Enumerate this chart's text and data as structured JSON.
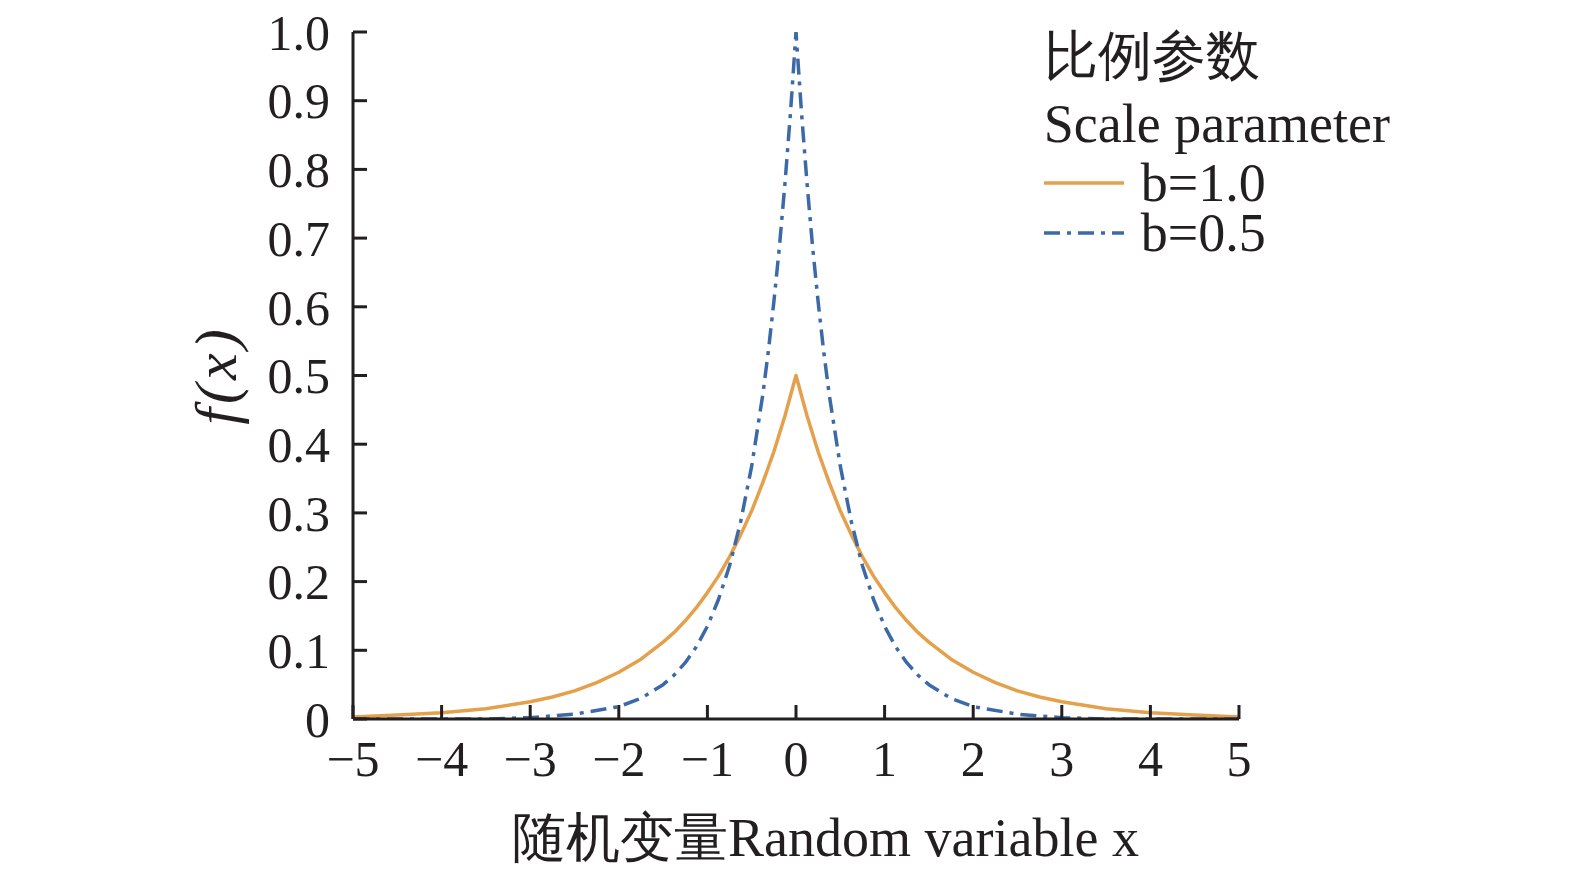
{
  "chart_data": {
    "type": "line",
    "xlabel": "随机变量Random variable x",
    "ylabel": "f(x)",
    "legend_title": "比例参数\nScale parameter",
    "xlim": [
      -5,
      5
    ],
    "xticks": [
      {
        "value": -5,
        "label": "−5"
      },
      {
        "value": -4,
        "label": "−4"
      },
      {
        "value": -3,
        "label": "−3"
      },
      {
        "value": -2,
        "label": "−2"
      },
      {
        "value": -1,
        "label": "−1"
      },
      0,
      1,
      2,
      3,
      4,
      5
    ],
    "ylim": [
      0,
      1
    ],
    "yticks": [
      0,
      0.1,
      0.2,
      0.3,
      0.4,
      0.5,
      0.6,
      0.7,
      0.8,
      0.9,
      {
        "value": 1,
        "label": "1.0"
      }
    ],
    "grid": false,
    "legend": "top right",
    "series": [
      {
        "name": "b=1.0",
        "color": "#e4a04b",
        "line_style": "solid",
        "x": [
          -5,
          -4.5,
          -4,
          -3.5,
          -3,
          -2.75,
          -2.5,
          -2.25,
          -2,
          -1.75,
          -1.5,
          -1.375,
          -1.25,
          -1.125,
          -1,
          -0.875,
          -0.75,
          -0.625,
          -0.5,
          -0.375,
          -0.25,
          -0.125,
          0,
          0.125,
          0.25,
          0.375,
          0.5,
          0.625,
          0.75,
          0.875,
          1,
          1.125,
          1.25,
          1.375,
          1.5,
          1.75,
          2,
          2.25,
          2.5,
          2.75,
          3,
          3.5,
          4,
          4.5,
          5
        ],
        "values": [
          0.003,
          0.006,
          0.009,
          0.015,
          0.025,
          0.032,
          0.041,
          0.053,
          0.068,
          0.087,
          0.112,
          0.126,
          0.143,
          0.162,
          0.184,
          0.208,
          0.236,
          0.268,
          0.303,
          0.344,
          0.389,
          0.441,
          0.5,
          0.441,
          0.389,
          0.344,
          0.303,
          0.268,
          0.236,
          0.208,
          0.184,
          0.162,
          0.143,
          0.126,
          0.112,
          0.087,
          0.068,
          0.053,
          0.041,
          0.032,
          0.025,
          0.015,
          0.009,
          0.006,
          0.003
        ]
      },
      {
        "name": "b=0.5",
        "color": "#3c69a7",
        "line_style": "dashdot",
        "x": [
          -5,
          -4,
          -3.5,
          -3,
          -2.5,
          -2,
          -1.75,
          -1.5,
          -1.375,
          -1.25,
          -1.125,
          -1,
          -0.875,
          -0.75,
          -0.625,
          -0.5,
          -0.375,
          -0.3125,
          -0.25,
          -0.1875,
          -0.125,
          -0.0625,
          0,
          0.0625,
          0.125,
          0.1875,
          0.25,
          0.3125,
          0.375,
          0.5,
          0.625,
          0.75,
          0.875,
          1,
          1.125,
          1.25,
          1.375,
          1.5,
          1.75,
          2,
          2.5,
          3,
          3.5,
          4,
          5
        ],
        "values": [
          0,
          0,
          0,
          0.002,
          0.007,
          0.018,
          0.03,
          0.05,
          0.064,
          0.082,
          0.105,
          0.135,
          0.174,
          0.223,
          0.287,
          0.368,
          0.472,
          0.535,
          0.607,
          0.687,
          0.779,
          0.882,
          1,
          0.882,
          0.779,
          0.687,
          0.607,
          0.535,
          0.472,
          0.368,
          0.287,
          0.223,
          0.174,
          0.135,
          0.105,
          0.082,
          0.064,
          0.05,
          0.03,
          0.018,
          0.007,
          0.002,
          0,
          0,
          0
        ]
      }
    ]
  }
}
